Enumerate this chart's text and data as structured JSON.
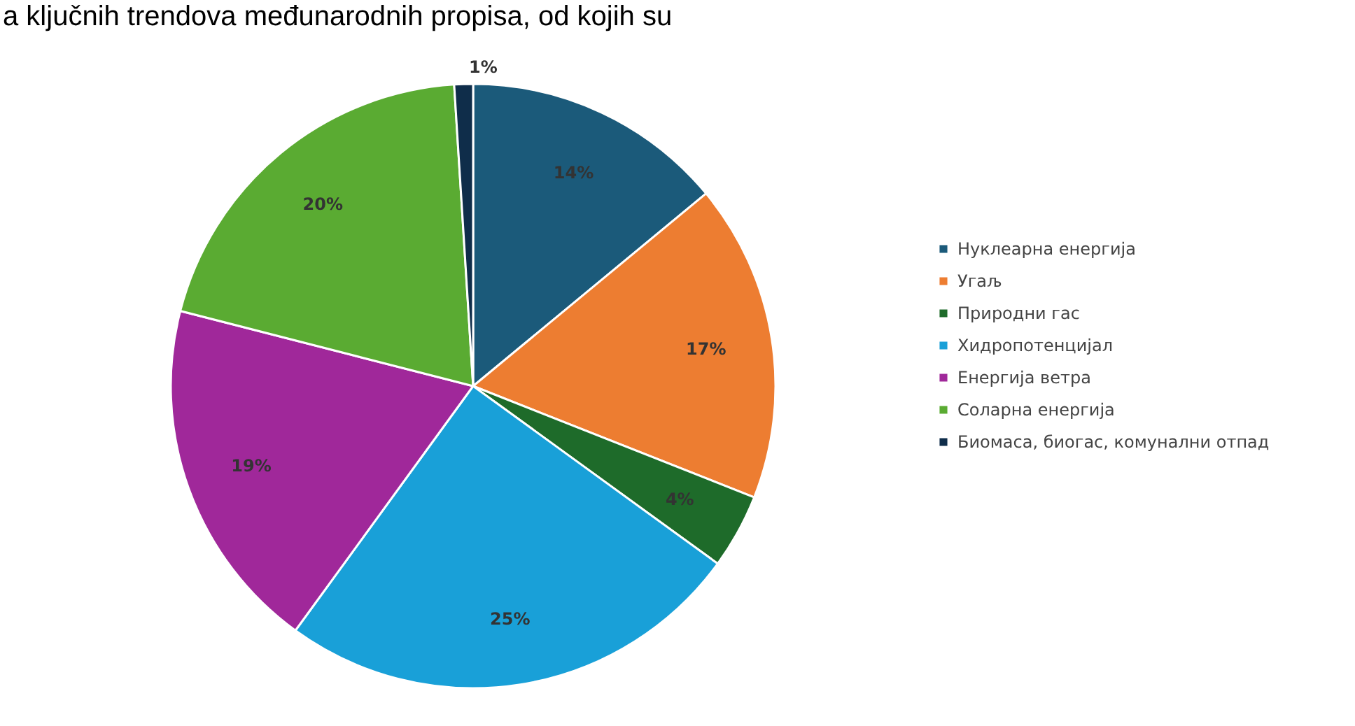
{
  "chart_data": {
    "type": "pie",
    "annotations": [
      "a ključnih trendova međunarodnih propisa, od kojih su"
    ],
    "categories": [
      "Нуклеарна енергија",
      "Угаљ",
      "Природни гас",
      "Хидропотенцијал",
      "Енергија ветра",
      "Соларна енергија",
      "Биомаса, биогас, комунални отпад"
    ],
    "values": [
      14,
      17,
      4,
      25,
      19,
      20,
      1
    ],
    "colors": [
      "#1b5a7a",
      "#ed7d31",
      "#1e6b2a",
      "#19a0d8",
      "#a0289a",
      "#5aab32",
      "#0f2d4a"
    ],
    "value_labels": [
      "14%",
      "17%",
      "4%",
      "25%",
      "19%",
      "20%",
      "1%"
    ],
    "legend": "right"
  }
}
